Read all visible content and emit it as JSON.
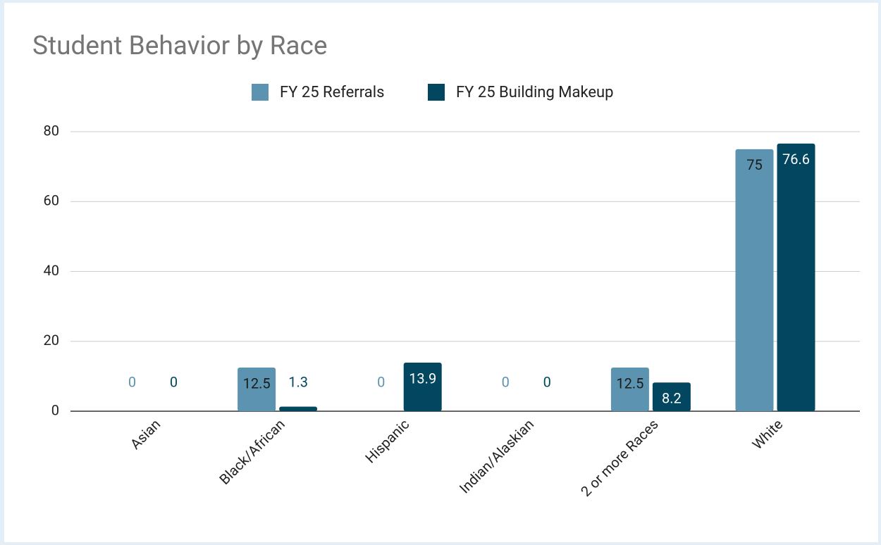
{
  "chart_data": {
    "type": "bar",
    "title": "Student Behavior by Race",
    "categories": [
      "Asian",
      "Black/African",
      "Hispanic",
      "Indian/Alaskian",
      "2 or more Races",
      "White"
    ],
    "series": [
      {
        "name": "FY 25 Referrals",
        "color": "#5b93b0",
        "values": [
          0,
          12.5,
          0,
          0,
          12.5,
          75
        ]
      },
      {
        "name": "FY 25 Building Makeup",
        "color": "#03465f",
        "values": [
          0,
          1.3,
          13.9,
          0,
          8.2,
          76.6
        ]
      }
    ],
    "ylim": [
      0,
      80
    ],
    "yticks": [
      0,
      20,
      40,
      60,
      80
    ],
    "grid": true,
    "legend": "top"
  }
}
